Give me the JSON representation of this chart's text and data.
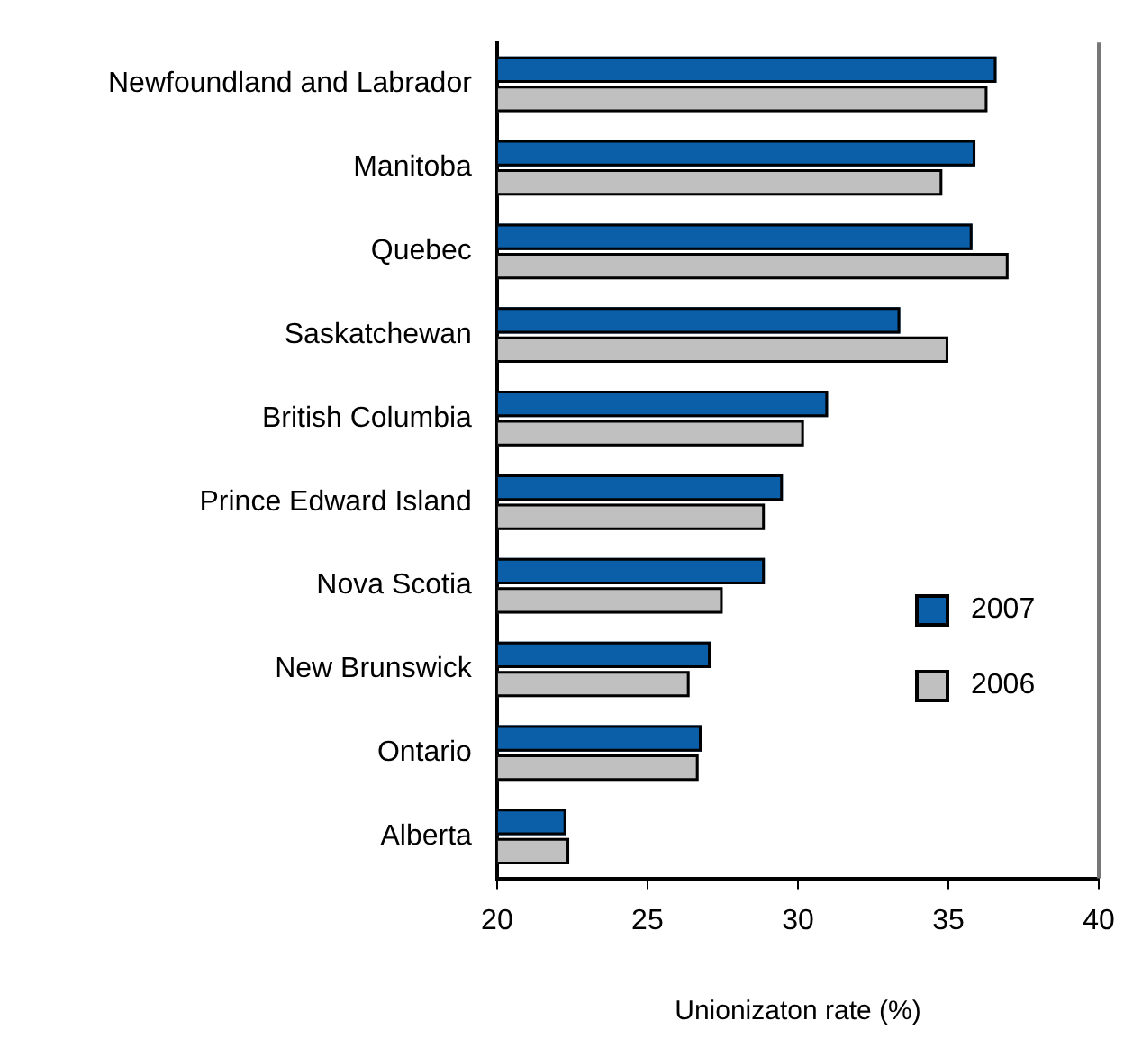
{
  "chart_data": {
    "type": "bar",
    "orientation": "horizontal",
    "xlabel": "Unionizaton rate (%)",
    "categories": [
      "Newfoundland and Labrador",
      "Manitoba",
      "Quebec",
      "Saskatchewan",
      "British Columbia",
      "Prince Edward Island",
      "Nova Scotia",
      "New Brunswick",
      "Ontario",
      "Alberta"
    ],
    "series": [
      {
        "name": "2007",
        "color": "#0b5ea8",
        "values": [
          36.6,
          35.9,
          35.8,
          33.4,
          31.0,
          29.5,
          28.9,
          27.1,
          26.8,
          22.3
        ]
      },
      {
        "name": "2006",
        "color": "#c0c0c0",
        "values": [
          36.3,
          34.8,
          37.0,
          35.0,
          30.2,
          28.9,
          27.5,
          26.4,
          26.7,
          22.4
        ]
      }
    ],
    "xlim": [
      20,
      40
    ],
    "xticks": [
      20,
      25,
      30,
      35,
      40
    ],
    "grid": false,
    "legend": "right"
  }
}
